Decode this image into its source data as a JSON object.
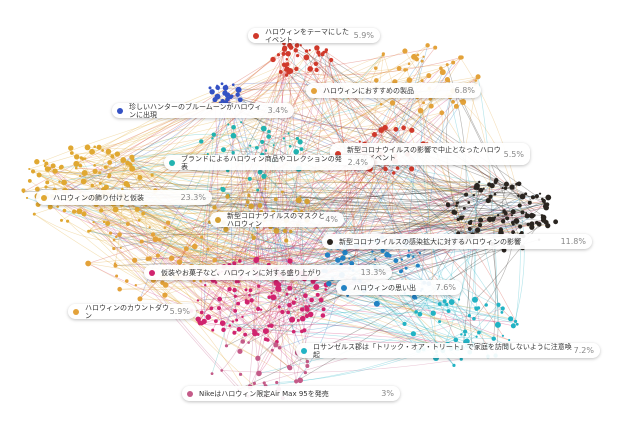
{
  "topics": [
    {
      "label": "ハロウィンをテーマにしたイベント",
      "share": "5.9%",
      "color": "#d0392b"
    },
    {
      "label": "ハロウィンにおすすめの製品",
      "share": "6.8%",
      "color": "#e3a23a"
    },
    {
      "label": "珍しいハンターのブルームーンがハロウィンに出現",
      "share": "3.4%",
      "color": "#3451c4"
    },
    {
      "label": "新型コロナウイルスの影響で中止となったハロウィンのイベント",
      "share": "5.5%",
      "color": "#d0392b"
    },
    {
      "label": "ブランドによるハロウィン商品やコレクションの発表",
      "share": "2.4%",
      "color": "#22b3b0"
    },
    {
      "label": "ハロウィンの飾り付けと仮装",
      "share": "23.3%",
      "color": "#e0a832"
    },
    {
      "label": "新型コロナウイルスのマスクとハロウィン",
      "share": "4%",
      "color": "#d4a032"
    },
    {
      "label": "新型コロナウイルスの感染拡大に対するハロウィンの影響",
      "share": "11.8%",
      "color": "#2a2520"
    },
    {
      "label": "仮装やお菓子など、ハロウィンに対する盛り上がり",
      "share": "13.3%",
      "color": "#d0246e"
    },
    {
      "label": "ハロウィンの思い出",
      "share": "7.6%",
      "color": "#2383c4"
    },
    {
      "label": "ハロウィンのカウントダウン",
      "share": "5.9%",
      "color": "#e3a23a"
    },
    {
      "label": "ロサンゼルス郡は「トリック・オア・トリート」で家庭を訪問しないように注意喚起",
      "share": "7.2%",
      "color": "#22b3c4"
    },
    {
      "label": "Nikeはハロウィン限定Air Max 95を発売",
      "share": "3%",
      "color": "#c45a88"
    }
  ]
}
